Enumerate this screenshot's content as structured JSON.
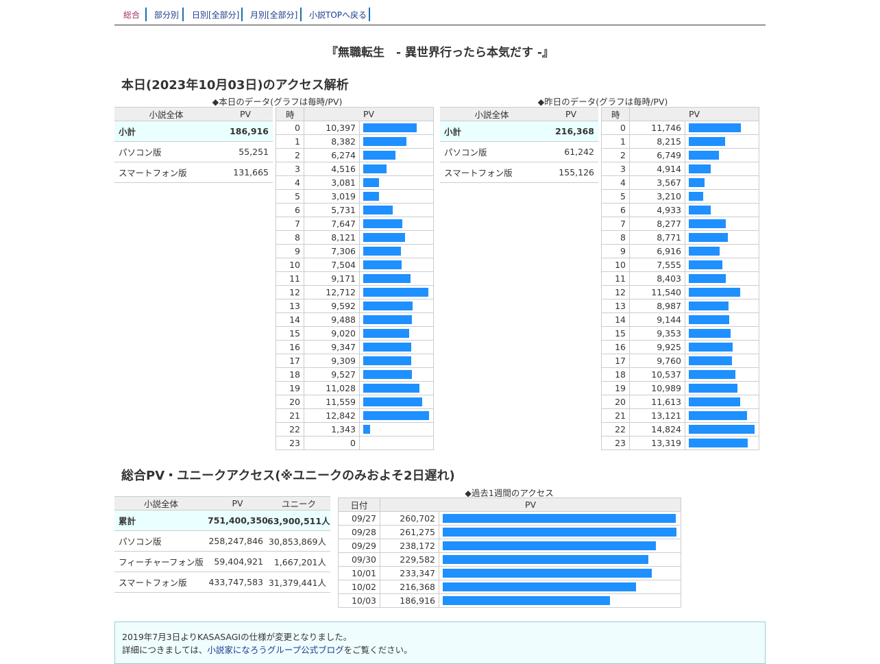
{
  "nav": {
    "items": [
      "総合",
      "部分別",
      "日別[全部分]",
      "月別[全部分]",
      "小説TOPへ戻る"
    ]
  },
  "novel_title": "『無職転生　- 異世界行ったら本気だす -』",
  "today_section": {
    "heading": "本日(2023年10月03日)のアクセス解析",
    "today_caption": "◆本日のデータ(グラフは毎時/PV)",
    "yesterday_caption": "◆昨日のデータ(グラフは毎時/PV)",
    "summary_headers": [
      "小説全体",
      "PV"
    ],
    "hour_headers": [
      "時",
      "PV"
    ],
    "today_summary": [
      {
        "label": "小計",
        "pv": "186,916"
      },
      {
        "label": "パソコン版",
        "pv": "55,251"
      },
      {
        "label": "スマートフォン版",
        "pv": "131,665"
      }
    ],
    "yesterday_summary": [
      {
        "label": "小計",
        "pv": "216,368"
      },
      {
        "label": "パソコン版",
        "pv": "61,242"
      },
      {
        "label": "スマートフォン版",
        "pv": "155,126"
      }
    ]
  },
  "chart_data": [
    {
      "type": "bar",
      "title": "◆本日のデータ(グラフは毎時/PV)",
      "categories": [
        "0",
        "1",
        "2",
        "3",
        "4",
        "5",
        "6",
        "7",
        "8",
        "9",
        "10",
        "11",
        "12",
        "13",
        "14",
        "15",
        "16",
        "17",
        "18",
        "19",
        "20",
        "21",
        "22",
        "23"
      ],
      "values": [
        10397,
        8382,
        6274,
        4516,
        3081,
        3019,
        5731,
        7647,
        8121,
        7306,
        7504,
        9171,
        12712,
        9592,
        9488,
        9020,
        9347,
        9309,
        9527,
        11028,
        11559,
        12842,
        1343,
        0
      ],
      "labels": [
        "10,397",
        "8,382",
        "6,274",
        "4,516",
        "3,081",
        "3,019",
        "5,731",
        "7,647",
        "8,121",
        "7,306",
        "7,504",
        "9,171",
        "12,712",
        "9,592",
        "9,488",
        "9,020",
        "9,347",
        "9,309",
        "9,527",
        "11,028",
        "11,559",
        "12,842",
        "1,343",
        "0"
      ],
      "xlabel": "時",
      "ylabel": "PV"
    },
    {
      "type": "bar",
      "title": "◆昨日のデータ(グラフは毎時/PV)",
      "categories": [
        "0",
        "1",
        "2",
        "3",
        "4",
        "5",
        "6",
        "7",
        "8",
        "9",
        "10",
        "11",
        "12",
        "13",
        "14",
        "15",
        "16",
        "17",
        "18",
        "19",
        "20",
        "21",
        "22",
        "23"
      ],
      "values": [
        11746,
        8215,
        6749,
        4914,
        3567,
        3210,
        4933,
        8277,
        8771,
        6916,
        7555,
        8403,
        11540,
        8987,
        9144,
        9353,
        9925,
        9760,
        10537,
        10989,
        11613,
        13121,
        14824,
        13319
      ],
      "labels": [
        "11,746",
        "8,215",
        "6,749",
        "4,914",
        "3,567",
        "3,210",
        "4,933",
        "8,277",
        "8,771",
        "6,916",
        "7,555",
        "8,403",
        "11,540",
        "8,987",
        "9,144",
        "9,353",
        "9,925",
        "9,760",
        "10,537",
        "10,989",
        "11,613",
        "13,121",
        "14,824",
        "13,319"
      ],
      "xlabel": "時",
      "ylabel": "PV"
    },
    {
      "type": "bar",
      "title": "◆過去1週間のアクセス",
      "categories": [
        "09/27",
        "09/28",
        "09/29",
        "09/30",
        "10/01",
        "10/02",
        "10/03"
      ],
      "values": [
        260702,
        261275,
        238172,
        229582,
        233347,
        216368,
        186916
      ],
      "labels": [
        "260,702",
        "261,275",
        "238,172",
        "229,582",
        "233,347",
        "216,368",
        "186,916"
      ],
      "xlabel": "日付",
      "ylabel": "PV"
    }
  ],
  "total_section": {
    "heading": "総合PV・ユニークアクセス(※ユニークのみおよそ2日遅れ)",
    "headers": [
      "小説全体",
      "PV",
      "ユニーク"
    ],
    "rows": [
      {
        "label": "累計",
        "pv": "751,400,350",
        "unique": "63,900,511人"
      },
      {
        "label": "パソコン版",
        "pv": "258,247,846",
        "unique": "30,853,869人"
      },
      {
        "label": "フィーチャーフォン版",
        "pv": "59,404,921",
        "unique": "1,667,201人"
      },
      {
        "label": "スマートフォン版",
        "pv": "433,747,583",
        "unique": "31,379,441人"
      }
    ]
  },
  "notice": {
    "line1": "2019年7月3日よりKASASAGIの仕様が変更となりました。",
    "line2_before": "詳細につきましては、",
    "line2_link": "小説家になろうグループ公式ブログ",
    "line2_after": "をご覧ください。"
  },
  "colors": {
    "bar": "#1e90ff",
    "subtotal_bg": "#eaffff",
    "header_bg": "#eeeeee"
  }
}
